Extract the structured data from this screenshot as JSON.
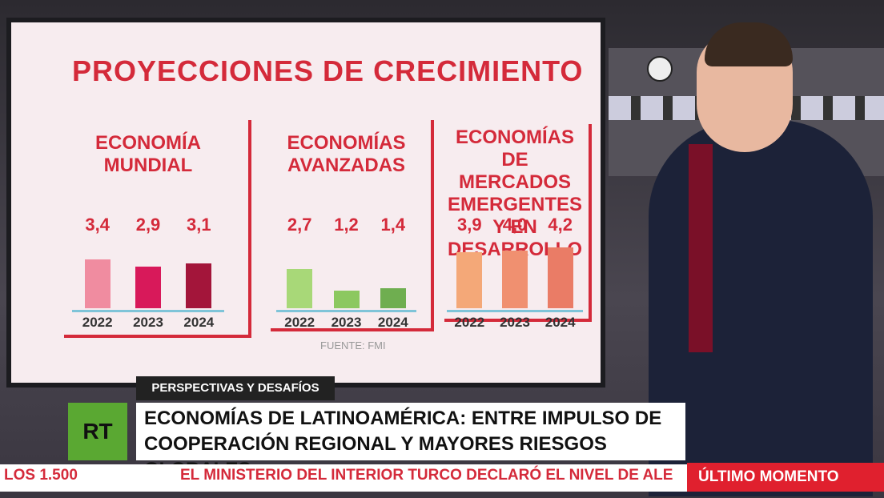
{
  "board": {
    "title": "PROYECCIONES DE CRECIMIENTO",
    "source": "FUENTE: FMI"
  },
  "chart_data": [
    {
      "type": "bar",
      "title": "ECONOMÍA MUNDIAL",
      "categories": [
        "2022",
        "2023",
        "2024"
      ],
      "values": [
        3.4,
        2.9,
        3.1
      ],
      "value_labels": [
        "3,4",
        "2,9",
        "3,1"
      ],
      "colors": [
        "#f08ca0",
        "#d8195a",
        "#a3153a"
      ]
    },
    {
      "type": "bar",
      "title": "ECONOMÍAS AVANZADAS",
      "categories": [
        "2022",
        "2023",
        "2024"
      ],
      "values": [
        2.7,
        1.2,
        1.4
      ],
      "value_labels": [
        "2,7",
        "1,2",
        "1,4"
      ],
      "colors": [
        "#a8d878",
        "#8cc860",
        "#6fae50"
      ]
    },
    {
      "type": "bar",
      "title": "ECONOMÍAS DE MERCADOS EMERGENTES Y EN DESARROLLO",
      "categories": [
        "2022",
        "2023",
        "2024"
      ],
      "values": [
        3.9,
        4.0,
        4.2
      ],
      "value_labels": [
        "3,9",
        "4,0",
        "4,2"
      ],
      "colors": [
        "#f4a878",
        "#f09070",
        "#ea7c66"
      ]
    }
  ],
  "lower_third": {
    "tag": "PERSPECTIVAS Y DESAFÍOS",
    "logo": "RT",
    "headline": [
      "ECONOMÍAS DE LATINOAMÉRICA: ENTRE IMPULSO DE",
      "COOPERACIÓN REGIONAL Y MAYORES RIESGOS GLOBALES"
    ]
  },
  "ticker": {
    "left": "LOS 1.500",
    "text": "EL MINISTERIO DEL INTERIOR TURCO DECLARÓ EL NIVEL DE ALE",
    "badge": "ÚLTIMO MOMENTO"
  }
}
